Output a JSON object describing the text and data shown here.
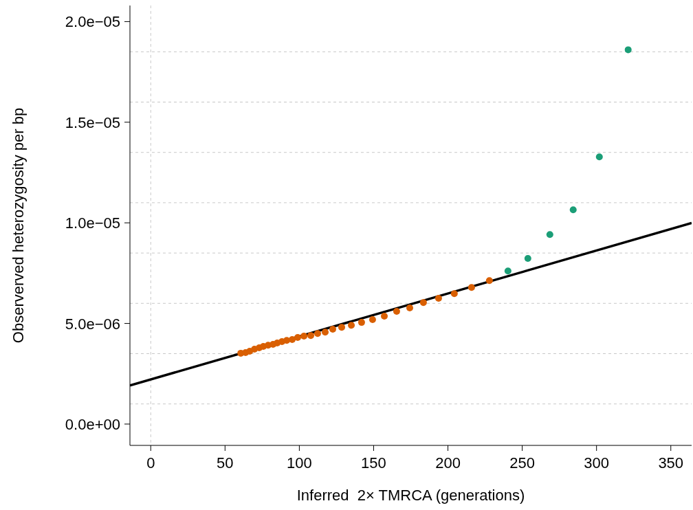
{
  "chart_data": {
    "type": "scatter",
    "xlabel": "Inferred  2× TMRCA (generations)",
    "ylabel": "Observerved heterozygosity per bp",
    "xlim": [
      -14,
      364
    ],
    "ylim": [
      -1.06e-06,
      2.08e-05
    ],
    "xticks": [
      0,
      50,
      100,
      150,
      200,
      250,
      300,
      350
    ],
    "yticks": [
      {
        "value": 0,
        "label": "0.0e+00"
      },
      {
        "value": 5e-06,
        "label": "5.0e−06"
      },
      {
        "value": 1e-05,
        "label": "1.0e−05"
      },
      {
        "value": 1.5e-05,
        "label": "1.5e−05"
      },
      {
        "value": 2e-05,
        "label": "2.0e−05"
      }
    ],
    "grid": false,
    "marker": "circle",
    "ref_lines": [
      {
        "axis": "x",
        "value": 0,
        "color": "#c8c8c8",
        "line_style": "dashed"
      },
      {
        "axis": "y",
        "value": 1e-06,
        "color": "#c8c8c8",
        "line_style": "dashed"
      },
      {
        "axis": "y",
        "value": 3.5e-06,
        "color": "#c8c8c8",
        "line_style": "dashed"
      },
      {
        "axis": "y",
        "value": 6e-06,
        "color": "#c8c8c8",
        "line_style": "dashed"
      },
      {
        "axis": "y",
        "value": 8.5e-06,
        "color": "#c8c8c8",
        "line_style": "dashed"
      },
      {
        "axis": "y",
        "value": 1.1e-05,
        "color": "#c8c8c8",
        "line_style": "dashed"
      },
      {
        "axis": "y",
        "value": 1.35e-05,
        "color": "#c8c8c8",
        "line_style": "dashed"
      },
      {
        "axis": "y",
        "value": 1.6e-05,
        "color": "#c8c8c8",
        "line_style": "dashed"
      },
      {
        "axis": "y",
        "value": 1.85e-05,
        "color": "#c8c8c8",
        "line_style": "dashed"
      }
    ],
    "series": [
      {
        "color": "#d95f02",
        "x": [
          60.6,
          63.8,
          66.6,
          69.8,
          73.0,
          75.8,
          79.0,
          82.3,
          85.1,
          88.3,
          91.5,
          95.2,
          98.9,
          103.1,
          107.7,
          112.3,
          117.4,
          122.5,
          128.5,
          135.0,
          141.9,
          149.3,
          157.2,
          165.5,
          174.3,
          183.5,
          193.7,
          204.3,
          215.9,
          227.9
        ],
        "values": [
          3.52e-06,
          3.55e-06,
          3.62e-06,
          3.72e-06,
          3.79e-06,
          3.86e-06,
          3.92e-06,
          3.96e-06,
          4.03e-06,
          4.1e-06,
          4.16e-06,
          4.2e-06,
          4.3e-06,
          4.37e-06,
          4.4e-06,
          4.5e-06,
          4.57e-06,
          4.71e-06,
          4.81e-06,
          4.91e-06,
          5.05e-06,
          5.19e-06,
          5.36e-06,
          5.6e-06,
          5.77e-06,
          6.04e-06,
          6.25e-06,
          6.48e-06,
          6.79e-06,
          7.13e-06
        ]
      },
      {
        "color": "#1b9e77",
        "x": [
          240.4,
          253.8,
          268.6,
          284.3,
          301.9,
          321.3
        ],
        "values": [
          7.61e-06,
          8.23e-06,
          9.42e-06,
          1.065e-05,
          1.328e-05,
          1.86e-05
        ]
      },
      {
        "type": "line",
        "color": "#000000",
        "marker": "none",
        "line_style": "solid",
        "x": [
          -14,
          364
        ],
        "values": [
          1.92e-06,
          9.99e-06
        ]
      }
    ]
  }
}
